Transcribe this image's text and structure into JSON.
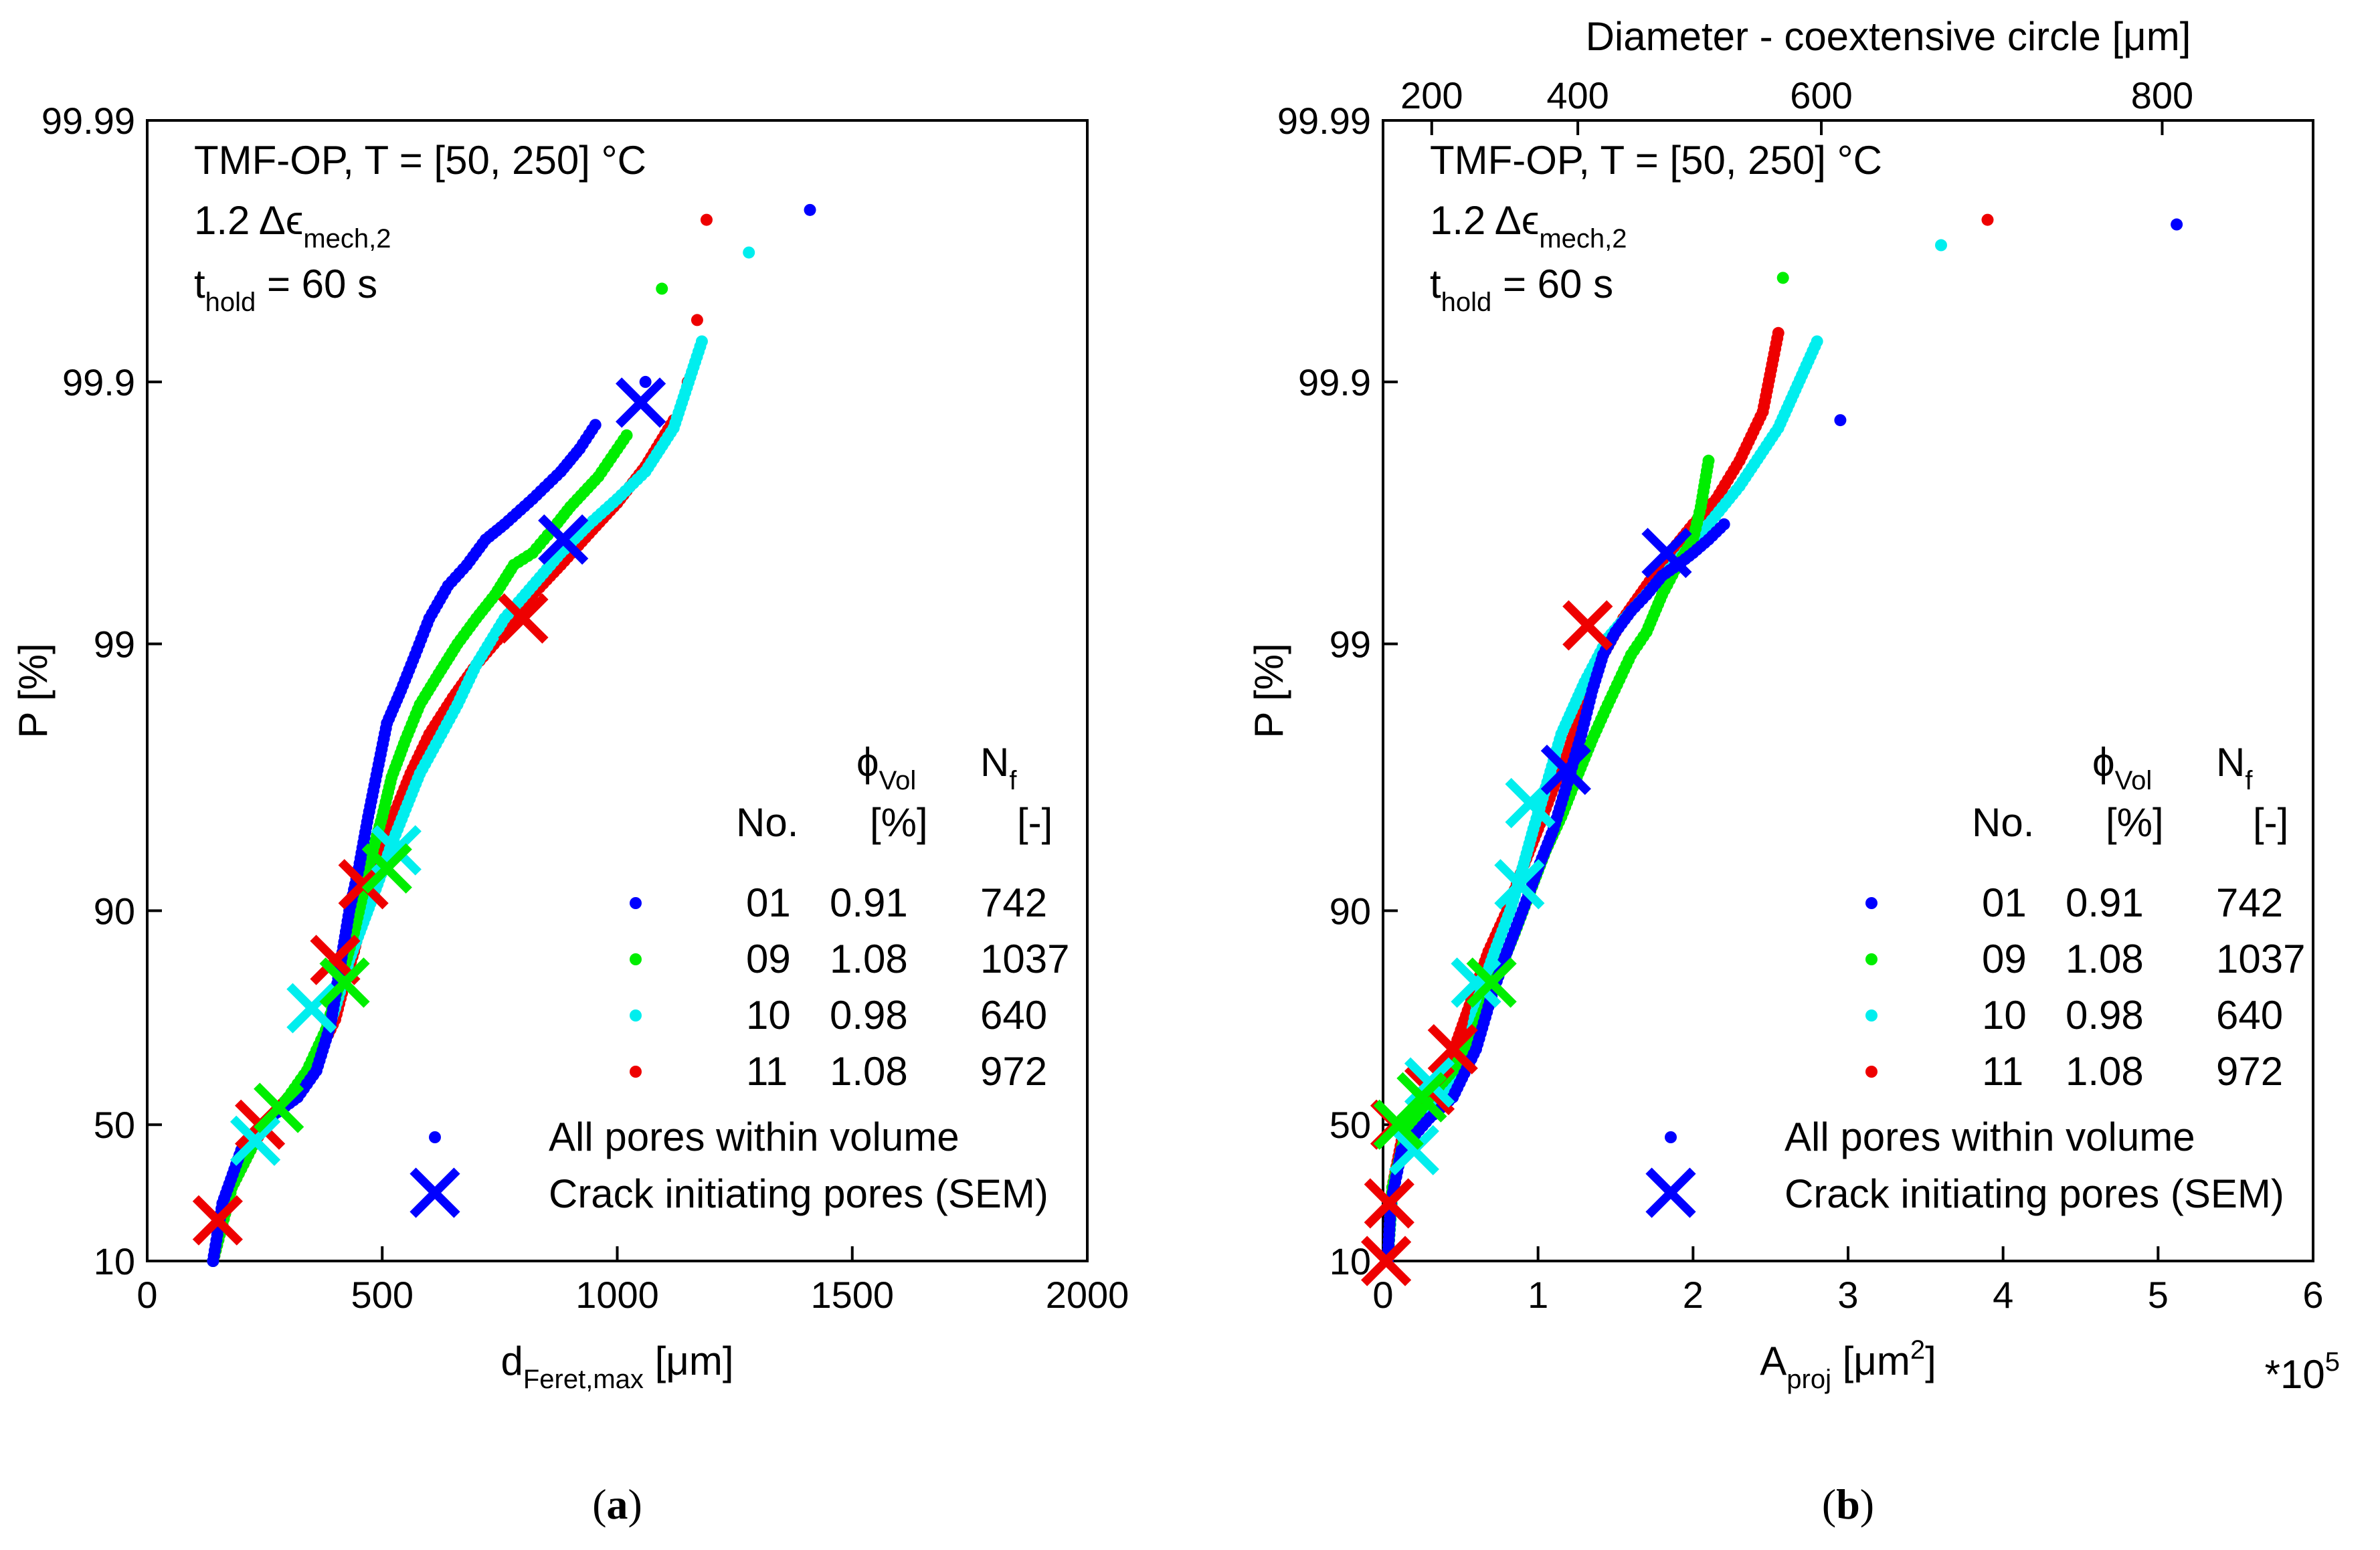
{
  "colors": {
    "s01": "#0000ff",
    "s09": "#00ee00",
    "s10": "#00eeee",
    "s11": "#ee0000",
    "axis": "#000000"
  },
  "panels": [
    {
      "caption": {
        "open": "(",
        "letter": "a",
        "close": ")"
      },
      "annotation": {
        "line1": "TMF-OP, T = [50, 250] °C",
        "line2_prefix": "1.2 Δϵ",
        "line2_sub": "mech,2",
        "line3_prefix": "t",
        "line3_sub": "hold",
        "line3_suffix": " = 60 s"
      },
      "xlabel": {
        "main": "d",
        "sub": "Feret,max",
        "unit": " [μm]"
      },
      "ylabel": "P [%]",
      "multiplier": "",
      "top_axis": null,
      "legend": {
        "phi_head": "ϕ",
        "phi_sub": "Vol",
        "nf_head": "N",
        "nf_sub": "f",
        "col_no": "No.",
        "col_phi_unit": "[%]",
        "col_nf_unit": "[-]",
        "rows": [
          {
            "no": "01",
            "phi": "0.91",
            "nf": "742",
            "color_key": "s01"
          },
          {
            "no": "09",
            "phi": "1.08",
            "nf": "1037",
            "color_key": "s09"
          },
          {
            "no": "10",
            "phi": "0.98",
            "nf": "640",
            "color_key": "s10"
          },
          {
            "no": "11",
            "phi": "1.08",
            "nf": "972",
            "color_key": "s11"
          }
        ],
        "all_pores": "All pores within volume",
        "crack_pores": "Crack initiating pores (SEM)"
      }
    },
    {
      "caption": {
        "open": "(",
        "letter": "b",
        "close": ")"
      },
      "annotation": {
        "line1": "TMF-OP, T = [50, 250] °C",
        "line2_prefix": "1.2 Δϵ",
        "line2_sub": "mech,2",
        "line3_prefix": "t",
        "line3_sub": "hold",
        "line3_suffix": " = 60 s"
      },
      "xlabel": {
        "main": "A",
        "sub": "proj",
        "unit": " [μm",
        "sup": "2",
        "close": "]"
      },
      "ylabel": "P [%]",
      "multiplier": "*10",
      "multiplier_sup": "5",
      "top_axis": {
        "label": "Diameter - coextensive circle [μm]",
        "ticks": [
          200,
          400,
          600,
          800
        ]
      },
      "legend": {
        "phi_head": "ϕ",
        "phi_sub": "Vol",
        "nf_head": "N",
        "nf_sub": "f",
        "col_no": "No.",
        "col_phi_unit": "[%]",
        "col_nf_unit": "[-]",
        "rows": [
          {
            "no": "01",
            "phi": "0.91",
            "nf": "742",
            "color_key": "s01"
          },
          {
            "no": "09",
            "phi": "1.08",
            "nf": "1037",
            "color_key": "s09"
          },
          {
            "no": "10",
            "phi": "0.98",
            "nf": "640",
            "color_key": "s10"
          },
          {
            "no": "11",
            "phi": "1.08",
            "nf": "972",
            "color_key": "s11"
          }
        ],
        "all_pores": "All pores within volume",
        "crack_pores": "Crack initiating pores (SEM)"
      }
    }
  ],
  "chart_data": [
    {
      "type": "scatter",
      "title": "",
      "xlabel": "d_Feret,max [μm]",
      "ylabel": "P [%]",
      "y_scale": "gumbel-probability",
      "xlim": [
        0,
        2000
      ],
      "xticks": [
        0,
        500,
        1000,
        1500,
        2000
      ],
      "yticks": [
        10,
        50,
        90,
        99,
        99.9,
        99.99
      ],
      "ytick_labels": [
        "10",
        "50",
        "90",
        "99",
        "99.9",
        "99.99"
      ],
      "series": [
        {
          "name": "01",
          "color_key": "s01",
          "curve_x": [
            140,
            160,
            200,
            260,
            320,
            360,
            390,
            410,
            430,
            450,
            470,
            490,
            510,
            540,
            570,
            600,
            640,
            680,
            720,
            760,
            820,
            880,
            920,
            960
          ],
          "curve_p": [
            10,
            25,
            42,
            52,
            58,
            65,
            75,
            84,
            90,
            93,
            95.5,
            97,
            98,
            98.5,
            98.9,
            99.2,
            99.4,
            99.5,
            99.6,
            99.65,
            99.72,
            99.78,
            99.82,
            99.86
          ],
          "tail_x": [
            920,
            1060,
            1410
          ],
          "tail_p": [
            99.82,
            99.9,
            99.978
          ],
          "crack_x": [
            1050,
            885
          ],
          "crack_p": [
            99.88,
            99.6
          ]
        },
        {
          "name": "09",
          "color_key": "s09",
          "curve_x": [
            140,
            180,
            240,
            300,
            340,
            380,
            410,
            440,
            460,
            480,
            500,
            520,
            550,
            580,
            620,
            660,
            700,
            740,
            780,
            820,
            860,
            900,
            960,
            1020
          ],
          "curve_p": [
            10,
            30,
            48,
            58,
            65,
            74,
            82,
            88,
            91.5,
            94,
            95.5,
            96.8,
            97.7,
            98.3,
            98.7,
            99,
            99.2,
            99.35,
            99.5,
            99.55,
            99.63,
            99.7,
            99.77,
            99.84
          ],
          "tail_x": [
            1020,
            1095
          ],
          "tail_p": [
            99.84,
            99.956
          ],
          "crack_x": [
            280,
            420,
            510
          ],
          "crack_p": [
            55,
            82,
            93
          ]
        },
        {
          "name": "10",
          "color_key": "s10",
          "curve_x": [
            140,
            170,
            210,
            260,
            320,
            370,
            400,
            430,
            460,
            490,
            520,
            550,
            580,
            620,
            660,
            700,
            760,
            820,
            880,
            940,
            1000,
            1060,
            1120,
            1180
          ],
          "curve_p": [
            10,
            28,
            42,
            52,
            60,
            70,
            78,
            85,
            89,
            92,
            94.3,
            95.8,
            96.9,
            97.7,
            98.3,
            98.8,
            99.2,
            99.4,
            99.55,
            99.65,
            99.72,
            99.78,
            99.85,
            99.93
          ],
          "tail_x": [
            1180,
            1280
          ],
          "tail_p": [
            99.93,
            99.968
          ],
          "crack_x": [
            230,
            350,
            530
          ],
          "crack_p": [
            45,
            78,
            94
          ]
        },
        {
          "name": "11",
          "color_key": "s11",
          "curve_x": [
            140,
            180,
            230,
            280,
            330,
            370,
            400,
            420,
            440,
            460,
            480,
            500,
            530,
            560,
            600,
            650,
            700,
            760,
            820,
            880,
            940,
            1000,
            1060,
            1120
          ],
          "curve_p": [
            10,
            30,
            45,
            55,
            62,
            70,
            76,
            82,
            86,
            90,
            92.5,
            94.2,
            95.8,
            96.9,
            97.8,
            98.4,
            98.8,
            99.1,
            99.35,
            99.5,
            99.62,
            99.71,
            99.79,
            99.86
          ],
          "tail_x": [
            1120,
            1150,
            1170,
            1190
          ],
          "tail_p": [
            99.86,
            99.9,
            99.942,
            99.976
          ],
          "crack_x": [
            150,
            240,
            400,
            460,
            800
          ],
          "crack_p": [
            20,
            50,
            85,
            92,
            99.2
          ]
        }
      ]
    },
    {
      "type": "scatter",
      "title": "",
      "xlabel": "A_proj [μm^2] *10^5",
      "ylabel": "P [%]",
      "y_scale": "gumbel-probability",
      "xlim": [
        0,
        6
      ],
      "xticks": [
        0,
        1,
        2,
        3,
        4,
        5,
        6
      ],
      "yticks": [
        10,
        50,
        90,
        99,
        99.9,
        99.99
      ],
      "ytick_labels": [
        "10",
        "50",
        "90",
        "99",
        "99.9",
        "99.99"
      ],
      "top_xlabel": "Diameter - coextensive circle [μm]",
      "top_xticks": [
        200,
        400,
        600,
        800
      ],
      "series": [
        {
          "name": "01",
          "color_key": "s01",
          "curve_x": [
            0.03,
            0.05,
            0.12,
            0.3,
            0.45,
            0.6,
            0.7,
            0.8,
            0.9,
            1.0,
            1.1,
            1.2,
            1.28,
            1.35,
            1.42,
            1.5,
            1.6,
            1.7,
            1.8,
            1.9,
            2.0,
            2.1,
            2.2
          ],
          "curve_p": [
            10,
            25,
            42,
            52,
            58,
            70,
            80,
            86,
            90,
            93,
            95,
            96.8,
            97.8,
            98.5,
            98.9,
            99.1,
            99.25,
            99.35,
            99.45,
            99.5,
            99.55,
            99.6,
            99.65
          ],
          "tail_x": [
            2.2,
            2.95,
            5.12
          ],
          "tail_p": [
            99.65,
            99.86,
            99.975
          ],
          "crack_x": [
            1.18,
            1.83
          ],
          "crack_p": [
            97,
            99.55
          ]
        },
        {
          "name": "09",
          "color_key": "s09",
          "curve_x": [
            0.03,
            0.06,
            0.15,
            0.3,
            0.45,
            0.6,
            0.72,
            0.85,
            0.95,
            1.05,
            1.15,
            1.25,
            1.35,
            1.45,
            1.6,
            1.7,
            1.8,
            1.9,
            2.0,
            2.05,
            2.1
          ],
          "curve_p": [
            10,
            30,
            48,
            58,
            65,
            74,
            82,
            88,
            91.5,
            94,
            95.5,
            96.8,
            97.7,
            98.3,
            98.9,
            99.1,
            99.35,
            99.5,
            99.6,
            99.7,
            99.8
          ],
          "tail_x": [
            2.1,
            2.58
          ],
          "tail_p": [
            99.8,
            99.96
          ],
          "crack_x": [
            0.1,
            0.25,
            0.7
          ],
          "crack_p": [
            50,
            58,
            82
          ]
        },
        {
          "name": "10",
          "color_key": "s10",
          "curve_x": [
            0.03,
            0.06,
            0.12,
            0.25,
            0.4,
            0.55,
            0.62,
            0.72,
            0.82,
            0.9,
            0.97,
            1.05,
            1.15,
            1.3,
            1.45,
            1.6,
            1.75,
            1.9,
            2.1,
            2.3,
            2.55,
            2.8
          ],
          "curve_p": [
            10,
            28,
            42,
            52,
            60,
            70,
            80,
            86,
            90,
            93,
            95,
            96.5,
            97.8,
            98.6,
            99.05,
            99.25,
            99.4,
            99.52,
            99.65,
            99.75,
            99.85,
            99.93
          ],
          "tail_x": [
            2.8,
            3.6
          ],
          "tail_p": [
            99.93,
            99.97
          ],
          "crack_x": [
            0.2,
            0.3,
            0.6,
            0.88,
            0.95
          ],
          "crack_p": [
            42,
            62,
            82,
            92,
            96
          ]
        },
        {
          "name": "11",
          "color_key": "s11",
          "curve_x": [
            0.03,
            0.06,
            0.12,
            0.25,
            0.38,
            0.48,
            0.58,
            0.68,
            0.8,
            0.9,
            1.0,
            1.1,
            1.2,
            1.3,
            1.42,
            1.55,
            1.7,
            1.85,
            2.0,
            2.15,
            2.3,
            2.45,
            2.55
          ],
          "curve_p": [
            10,
            30,
            45,
            55,
            62,
            72,
            80,
            86,
            90,
            93,
            95,
            96.5,
            97.5,
            98.4,
            98.9,
            99.2,
            99.4,
            99.55,
            99.65,
            99.72,
            99.8,
            99.87,
            99.935
          ],
          "tail_x": [
            2.55,
            3.9
          ],
          "tail_p": [
            99.935,
            99.976
          ],
          "crack_x": [
            0.02,
            0.04,
            0.08,
            0.3,
            0.45,
            1.32
          ],
          "crack_p": [
            10,
            25,
            50,
            60,
            70,
            99.15
          ]
        }
      ]
    }
  ]
}
